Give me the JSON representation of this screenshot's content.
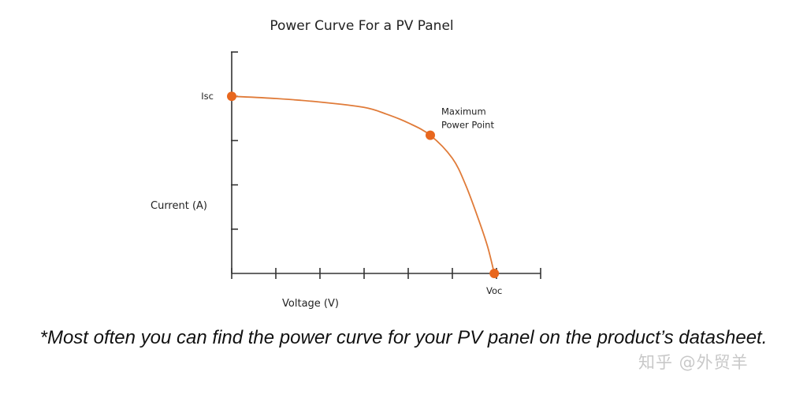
{
  "chart_data": {
    "type": "line",
    "title": "Power Curve For a PV Panel",
    "xlabel": "Voltage (V)",
    "ylabel": "Current (A)",
    "xlim": [
      0,
      7
    ],
    "ylim": [
      0,
      5
    ],
    "x_ticks": [
      0,
      1,
      2,
      3,
      4,
      5,
      6,
      7
    ],
    "y_ticks": [
      0,
      1,
      2,
      3,
      4,
      5
    ],
    "grid": false,
    "legend": "none",
    "series": [
      {
        "x": [
          0,
          1,
          2,
          3,
          3.5,
          4,
          4.5,
          5,
          5.3,
          5.6,
          5.8,
          5.95
        ],
        "values": [
          4.0,
          3.95,
          3.87,
          3.75,
          3.6,
          3.4,
          3.12,
          2.6,
          2.0,
          1.2,
          0.6,
          0
        ]
      }
    ],
    "points": [
      {
        "label": "Isc",
        "x": 0,
        "y": 4.0
      },
      {
        "label": "Maximum Power Point",
        "label_lines": [
          "Maximum",
          "Power Point"
        ],
        "x": 4.5,
        "y": 3.12
      },
      {
        "label": "Voc",
        "x": 5.95,
        "y": 0
      }
    ],
    "colors": {
      "curve": "#e07b39",
      "marker": "#e8671e",
      "axis": "#333333"
    }
  },
  "caption": "*Most often you can find the power curve for your PV panel on the product’s datasheet.",
  "watermark": "知乎 @外贸羊"
}
